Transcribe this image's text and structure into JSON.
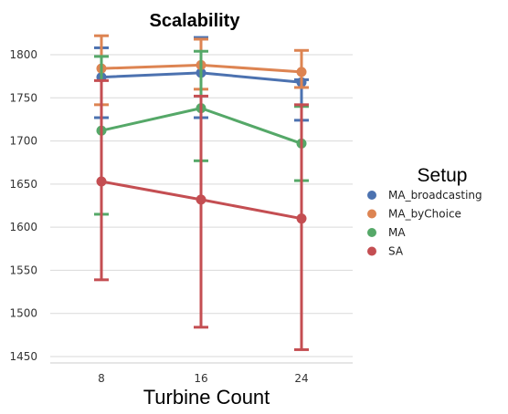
{
  "chart_data": {
    "type": "line",
    "title": "Scalability",
    "xlabel": "Turbine Count",
    "ylabel": "",
    "categories": [
      "8",
      "16",
      "24"
    ],
    "ylim": [
      1440,
      1822
    ],
    "yticks": [
      1450,
      1500,
      1550,
      1600,
      1650,
      1700,
      1750,
      1800
    ],
    "grid": "horizontal",
    "legend": {
      "title": "Setup",
      "placement": "right"
    },
    "series": [
      {
        "name": "MA_broadcasting",
        "color": "#4c72b0",
        "values": [
          1774,
          1779,
          1768
        ],
        "err_low": [
          1727,
          1727,
          1724
        ],
        "err_high": [
          1808,
          1820,
          1771
        ]
      },
      {
        "name": "MA_byChoice",
        "color": "#dd8452",
        "values": [
          1784,
          1788,
          1780
        ],
        "err_low": [
          1742,
          1760,
          1762
        ],
        "err_high": [
          1822,
          1818,
          1805
        ]
      },
      {
        "name": "MA",
        "color": "#55a868",
        "values": [
          1712,
          1738,
          1697
        ],
        "err_low": [
          1615,
          1677,
          1654
        ],
        "err_high": [
          1798,
          1804,
          1740
        ]
      },
      {
        "name": "SA",
        "color": "#c44e52",
        "values": [
          1653,
          1632,
          1610
        ],
        "err_low": [
          1539,
          1484,
          1458
        ],
        "err_high": [
          1770,
          1752,
          1742
        ]
      }
    ]
  }
}
